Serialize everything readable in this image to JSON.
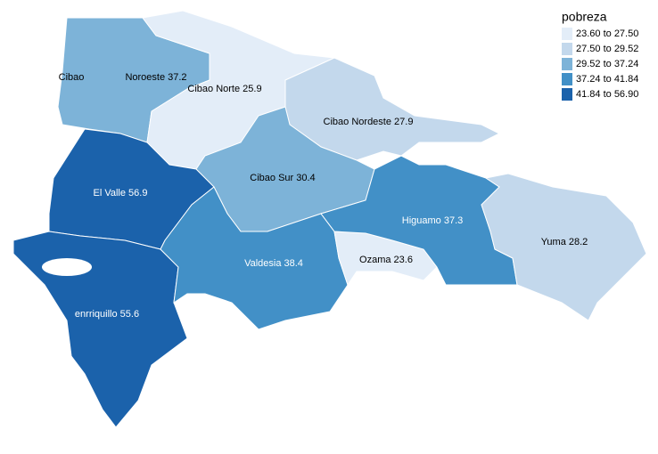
{
  "map": {
    "regions": [
      {
        "label": "Noroeste 37.2",
        "value": 37.2
      },
      {
        "label": "Cibao Norte 25.9",
        "value": 25.9
      },
      {
        "label": "Cibao Nordeste 27.9",
        "value": 27.9
      },
      {
        "label": "Cibao Sur 30.4",
        "value": 30.4
      },
      {
        "label": "El Valle 56.9",
        "value": 56.9
      },
      {
        "label": "enrriquillo 55.6",
        "value": 55.6
      },
      {
        "label": "Valdesia 38.4",
        "value": 38.4
      },
      {
        "label": "Ozama 23.6",
        "value": 23.6
      },
      {
        "label": "Higuamo 37.3",
        "value": 37.3
      },
      {
        "label": "Yuma 28.2",
        "value": 28.2
      }
    ],
    "annotation": "Cibao",
    "legend": {
      "title": "pobreza",
      "breaks": [
        23.6,
        27.5,
        29.52,
        37.24,
        41.84,
        56.9
      ],
      "labels": [
        "23.60 to 27.50",
        "27.50 to 29.52",
        "29.52 to 37.24",
        "37.24 to 41.84",
        "41.84 to 56.90"
      ],
      "colors": [
        "#e3edf8",
        "#c3d8ec",
        "#7db3d8",
        "#4290c7",
        "#1b62ab"
      ]
    }
  }
}
